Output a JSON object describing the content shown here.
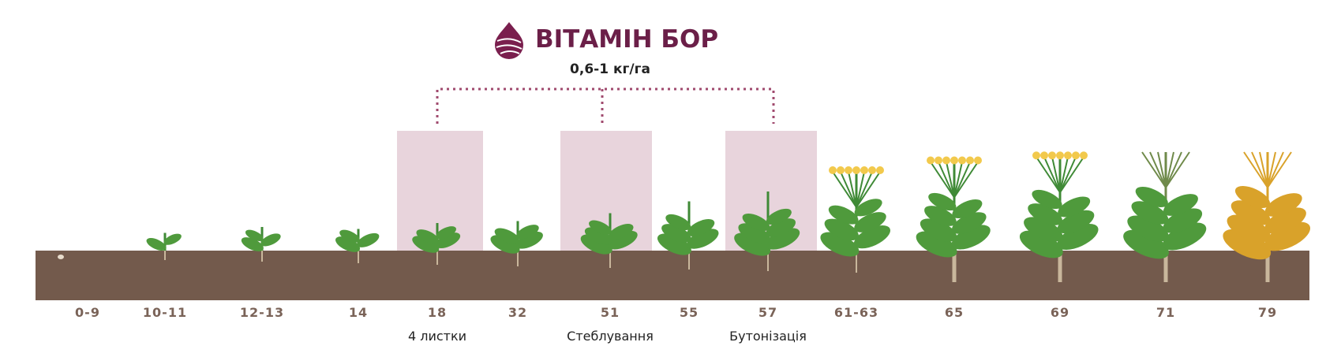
{
  "header": {
    "title": "ВІТАМІН БОР",
    "dose": "0,6-1 кг/га"
  },
  "stages": [
    {
      "code": "0-9"
    },
    {
      "code": "10-11"
    },
    {
      "code": "12-13"
    },
    {
      "code": "14"
    },
    {
      "code": "18",
      "phase": "4 листки"
    },
    {
      "code": "32"
    },
    {
      "code": "51",
      "phase": "Стеблування"
    },
    {
      "code": "55"
    },
    {
      "code": "57",
      "phase": "Бутонізація"
    },
    {
      "code": "61-63"
    },
    {
      "code": "65"
    },
    {
      "code": "69"
    },
    {
      "code": "71"
    },
    {
      "code": "79"
    }
  ]
}
